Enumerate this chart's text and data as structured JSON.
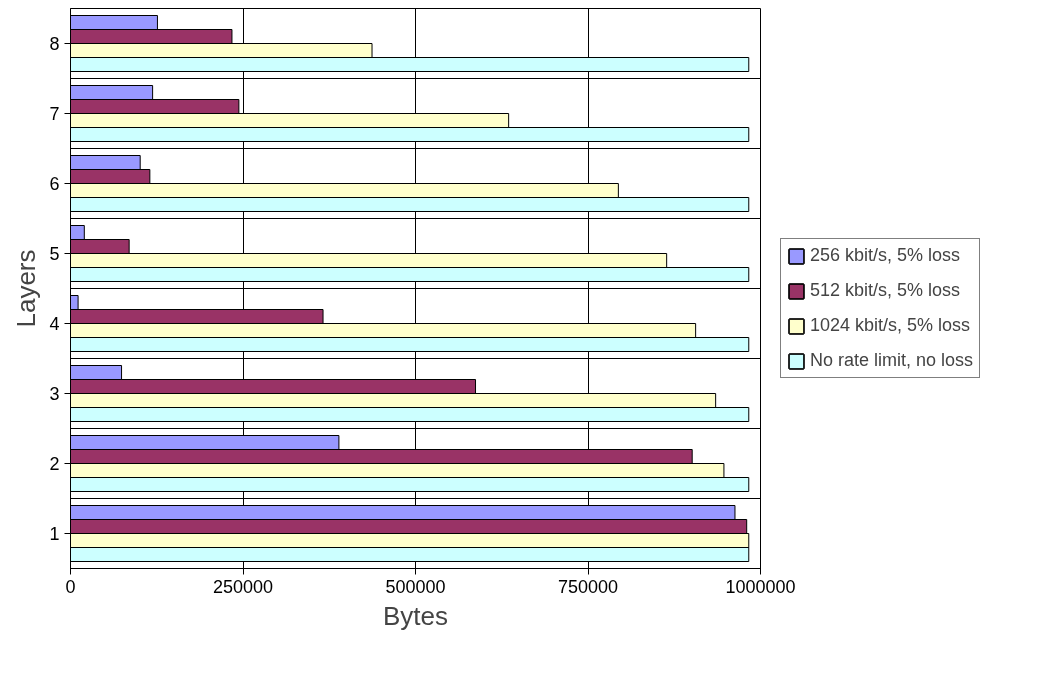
{
  "chart_data": {
    "type": "bar",
    "orientation": "horizontal",
    "xlabel": "Bytes",
    "ylabel": "Layers",
    "categories": [
      "8",
      "7",
      "6",
      "5",
      "4",
      "3",
      "2",
      "1"
    ],
    "series": [
      {
        "name": "256 kbit/s, 5% loss",
        "color": "#9999ff",
        "values": [
          126000,
          119000,
          101000,
          20000,
          11000,
          74000,
          389000,
          963000
        ]
      },
      {
        "name": "512 kbit/s, 5% loss",
        "color": "#993366",
        "values": [
          234000,
          244000,
          115000,
          85000,
          366000,
          587000,
          901000,
          980000
        ]
      },
      {
        "name": "1024 kbit/s, 5% loss",
        "color": "#ffffcc",
        "values": [
          437000,
          635000,
          794000,
          864000,
          906000,
          935000,
          947000,
          983000
        ]
      },
      {
        "name": "No rate limit, no loss",
        "color": "#ccffff",
        "values": [
          983000,
          983000,
          983000,
          983000,
          983000,
          983000,
          983000,
          983000
        ]
      }
    ],
    "xlim": [
      0,
      1000000
    ],
    "xticks": [
      0,
      250000,
      500000,
      750000,
      1000000
    ],
    "grid": true,
    "legend": "right"
  }
}
